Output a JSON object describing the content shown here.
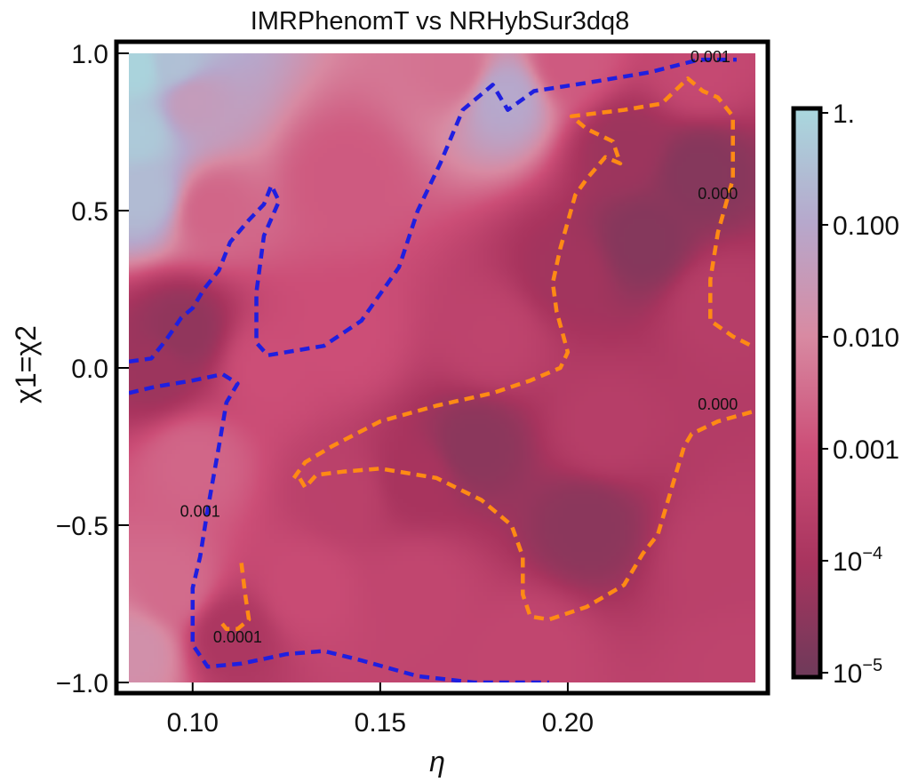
{
  "chart_data": {
    "type": "heatmap",
    "title": "IMRPhenomT vs NRHybSur3dq8",
    "xlabel": "η",
    "ylabel": "χ1=χ2",
    "xlim": [
      0.083,
      0.25
    ],
    "ylim": [
      -1.0,
      1.0
    ],
    "x_ticks": [
      {
        "value": 0.1,
        "label": "0.10"
      },
      {
        "value": 0.15,
        "label": "0.15"
      },
      {
        "value": 0.2,
        "label": "0.20"
      }
    ],
    "y_ticks": [
      {
        "value": 1.0,
        "label": "1.0"
      },
      {
        "value": 0.5,
        "label": "0.5"
      },
      {
        "value": 0.0,
        "label": "0.0"
      },
      {
        "value": -0.5,
        "label": "−0.5"
      },
      {
        "value": -1.0,
        "label": "−1.0"
      }
    ],
    "colorbar": {
      "scale": "log",
      "range": [
        1e-05,
        1.0
      ],
      "ticks": [
        {
          "value": 1.0,
          "label": "1."
        },
        {
          "value": 0.1,
          "label": "0.100"
        },
        {
          "value": 0.01,
          "label": "0.010"
        },
        {
          "value": 0.001,
          "label": "0.001"
        },
        {
          "value": 0.0001,
          "label": "10",
          "exp": "−4"
        },
        {
          "value": 1e-05,
          "label": "10",
          "exp": "−5"
        }
      ],
      "colors": [
        "#6e3a5a",
        "#a8345e",
        "#cc4e77",
        "#d88aa2",
        "#b6a8cc",
        "#a9d8de"
      ]
    },
    "contours": [
      {
        "level": 0.001,
        "color": "#1f1fe0",
        "points": [
          [
            0.083,
            0.02
          ],
          [
            0.089,
            0.03
          ],
          [
            0.093,
            0.09
          ],
          [
            0.097,
            0.16
          ],
          [
            0.1,
            0.19
          ],
          [
            0.103,
            0.25
          ],
          [
            0.107,
            0.31
          ],
          [
            0.11,
            0.4
          ],
          [
            0.115,
            0.47
          ],
          [
            0.119,
            0.52
          ],
          [
            0.121,
            0.58
          ],
          [
            0.123,
            0.53
          ],
          [
            0.119,
            0.42
          ],
          [
            0.117,
            0.24
          ],
          [
            0.117,
            0.08
          ],
          [
            0.12,
            0.04
          ],
          [
            0.135,
            0.07
          ],
          [
            0.145,
            0.15
          ],
          [
            0.155,
            0.32
          ],
          [
            0.16,
            0.5
          ],
          [
            0.166,
            0.65
          ],
          [
            0.172,
            0.82
          ],
          [
            0.18,
            0.9
          ],
          [
            0.184,
            0.82
          ],
          [
            0.191,
            0.88
          ],
          [
            0.207,
            0.91
          ],
          [
            0.222,
            0.94
          ],
          [
            0.235,
            0.98
          ],
          [
            0.245,
            0.98
          ]
        ]
      },
      {
        "level": 0.001,
        "color": "#1f1fe0",
        "points": [
          [
            0.083,
            -0.08
          ],
          [
            0.09,
            -0.06
          ],
          [
            0.1,
            -0.04
          ],
          [
            0.108,
            -0.02
          ],
          [
            0.112,
            -0.05
          ],
          [
            0.109,
            -0.11
          ],
          [
            0.107,
            -0.25
          ],
          [
            0.104,
            -0.45
          ],
          [
            0.102,
            -0.6
          ],
          [
            0.1,
            -0.7
          ],
          [
            0.1,
            -0.88
          ],
          [
            0.104,
            -0.95
          ],
          [
            0.113,
            -0.94
          ],
          [
            0.125,
            -0.91
          ],
          [
            0.135,
            -0.9
          ],
          [
            0.145,
            -0.93
          ],
          [
            0.16,
            -0.98
          ],
          [
            0.175,
            -1.0
          ],
          [
            0.195,
            -1.0
          ]
        ]
      },
      {
        "level": 0.0001,
        "color": "#ff8a14",
        "points": [
          [
            0.113,
            -0.62
          ],
          [
            0.114,
            -0.72
          ],
          [
            0.115,
            -0.8
          ],
          [
            0.112,
            -0.83
          ],
          [
            0.109,
            -0.83
          ],
          [
            0.107,
            -0.8
          ]
        ]
      },
      {
        "level": 0.0001,
        "color": "#ff8a14",
        "points": [
          [
            0.127,
            -0.35
          ],
          [
            0.13,
            -0.3
          ],
          [
            0.137,
            -0.25
          ],
          [
            0.15,
            -0.17
          ],
          [
            0.165,
            -0.12
          ],
          [
            0.18,
            -0.08
          ],
          [
            0.19,
            -0.04
          ],
          [
            0.198,
            0.0
          ],
          [
            0.2,
            0.05
          ],
          [
            0.197,
            0.18
          ],
          [
            0.196,
            0.27
          ],
          [
            0.198,
            0.38
          ],
          [
            0.202,
            0.55
          ],
          [
            0.205,
            0.6
          ],
          [
            0.21,
            0.67
          ],
          [
            0.214,
            0.65
          ],
          [
            0.212,
            0.72
          ],
          [
            0.205,
            0.76
          ],
          [
            0.201,
            0.8
          ],
          [
            0.215,
            0.82
          ],
          [
            0.225,
            0.84
          ],
          [
            0.232,
            0.92
          ],
          [
            0.236,
            0.88
          ],
          [
            0.24,
            0.86
          ],
          [
            0.244,
            0.8
          ],
          [
            0.244,
            0.6
          ],
          [
            0.24,
            0.43
          ],
          [
            0.238,
            0.28
          ],
          [
            0.238,
            0.15
          ],
          [
            0.244,
            0.1
          ],
          [
            0.249,
            0.07
          ]
        ]
      },
      {
        "level": 0.0001,
        "color": "#ff8a14",
        "points": [
          [
            0.249,
            -0.14
          ],
          [
            0.24,
            -0.17
          ],
          [
            0.233,
            -0.21
          ],
          [
            0.231,
            -0.25
          ],
          [
            0.229,
            -0.33
          ],
          [
            0.226,
            -0.45
          ],
          [
            0.224,
            -0.53
          ],
          [
            0.22,
            -0.59
          ],
          [
            0.215,
            -0.69
          ],
          [
            0.205,
            -0.76
          ],
          [
            0.195,
            -0.8
          ],
          [
            0.19,
            -0.79
          ],
          [
            0.188,
            -0.72
          ],
          [
            0.188,
            -0.6
          ],
          [
            0.185,
            -0.5
          ],
          [
            0.177,
            -0.42
          ],
          [
            0.165,
            -0.35
          ],
          [
            0.15,
            -0.32
          ],
          [
            0.14,
            -0.33
          ],
          [
            0.133,
            -0.34
          ],
          [
            0.13,
            -0.38
          ],
          [
            0.128,
            -0.34
          ]
        ]
      }
    ],
    "contour_labels": [
      {
        "text": "0.001",
        "x": 0.238,
        "y": 0.985
      },
      {
        "text": "0.000",
        "x": 0.24,
        "y": 0.55
      },
      {
        "text": "0.000",
        "x": 0.24,
        "y": -0.12
      },
      {
        "text": "0.001",
        "x": 0.102,
        "y": -0.46
      },
      {
        "text": "0.0001",
        "x": 0.112,
        "y": -0.86
      }
    ],
    "colormap_nodes": [
      {
        "x": 0.085,
        "y": 0.95,
        "v": -0.1
      },
      {
        "x": 0.085,
        "y": 0.75,
        "v": -0.3
      },
      {
        "x": 0.087,
        "y": 0.55,
        "v": -0.6
      },
      {
        "x": 0.095,
        "y": 0.97,
        "v": -0.5
      },
      {
        "x": 0.1,
        "y": 0.85,
        "v": -1.4
      },
      {
        "x": 0.085,
        "y": -0.9,
        "v": -1.8
      },
      {
        "x": 0.09,
        "y": 0.0,
        "v": -4.2
      },
      {
        "x": 0.097,
        "y": 0.12,
        "v": -4.4
      },
      {
        "x": 0.11,
        "y": -0.85,
        "v": -3.9
      },
      {
        "x": 0.22,
        "y": 0.4,
        "v": -4.6
      },
      {
        "x": 0.235,
        "y": 0.62,
        "v": -4.6
      },
      {
        "x": 0.2,
        "y": 0.3,
        "v": -4.1
      },
      {
        "x": 0.215,
        "y": 0.7,
        "v": -4.2
      },
      {
        "x": 0.175,
        "y": -0.25,
        "v": -4.5
      },
      {
        "x": 0.205,
        "y": -0.5,
        "v": -4.5
      },
      {
        "x": 0.16,
        "y": -0.35,
        "v": -4.0
      },
      {
        "x": 0.14,
        "y": -0.4,
        "v": -3.5
      },
      {
        "x": 0.14,
        "y": 0.1,
        "v": -3.0
      },
      {
        "x": 0.14,
        "y": 0.6,
        "v": -2.8
      },
      {
        "x": 0.12,
        "y": 0.0,
        "v": -3.0
      },
      {
        "x": 0.13,
        "y": -0.7,
        "v": -3.1
      },
      {
        "x": 0.16,
        "y": -0.7,
        "v": -3.3
      },
      {
        "x": 0.21,
        "y": -0.2,
        "v": -3.6
      },
      {
        "x": 0.24,
        "y": -0.6,
        "v": -3.5
      },
      {
        "x": 0.24,
        "y": 0.2,
        "v": -3.6
      },
      {
        "x": 0.183,
        "y": 0.86,
        "v": -1.0
      },
      {
        "x": 0.17,
        "y": 0.95,
        "v": -2.4
      },
      {
        "x": 0.2,
        "y": 0.97,
        "v": -2.8
      },
      {
        "x": 0.105,
        "y": 0.5,
        "v": -2.6
      },
      {
        "x": 0.1,
        "y": -0.3,
        "v": -2.6
      },
      {
        "x": 0.095,
        "y": -0.7,
        "v": -2.5
      },
      {
        "x": 0.18,
        "y": 0.1,
        "v": -3.4
      },
      {
        "x": 0.19,
        "y": -0.9,
        "v": -3.3
      },
      {
        "x": 0.245,
        "y": -0.95,
        "v": -3.4
      },
      {
        "x": 0.235,
        "y": 0.95,
        "v": -3.2
      }
    ]
  }
}
